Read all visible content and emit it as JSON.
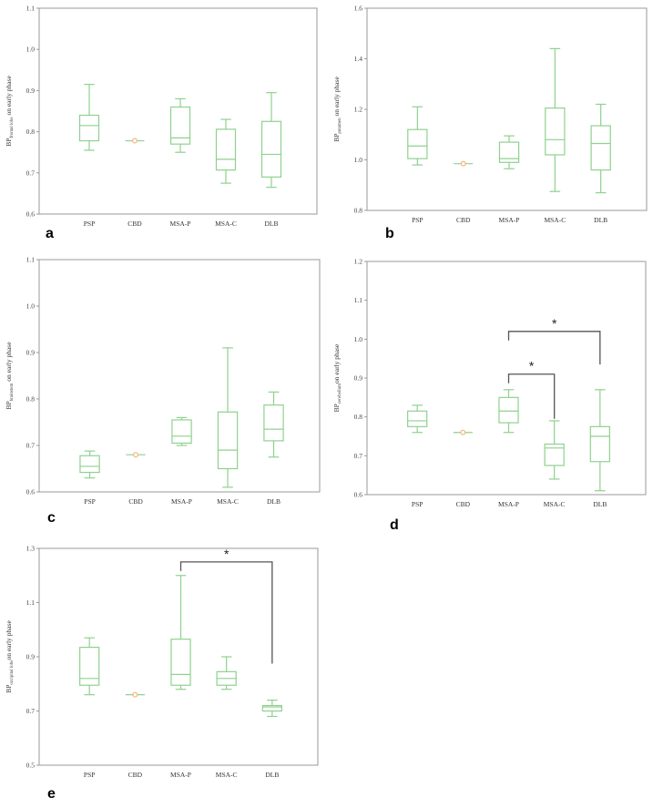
{
  "colors": {
    "box": "#8fd18f",
    "median_point": "#f2b77a",
    "frame": "#9a9a9a",
    "bracket": "#555555"
  },
  "chart_data": [
    {
      "type": "boxplot",
      "panel_label": "a",
      "ylabel_prefix": "BP",
      "ylabel_sub": "frontal lobe",
      "ylabel_suffix": " on early phase",
      "ylim": [
        0.6,
        1.1
      ],
      "yticks": [
        "0.6",
        "0.7",
        "0.8",
        "0.9",
        "1.0",
        "1.1"
      ],
      "categories": [
        "PSP",
        "CBD",
        "MSA-P",
        "MSA-C",
        "DLB"
      ],
      "boxes": [
        {
          "min": 0.755,
          "q1": 0.778,
          "median": 0.815,
          "q3": 0.84,
          "max": 0.915
        },
        {
          "single": 0.778
        },
        {
          "min": 0.75,
          "q1": 0.77,
          "median": 0.785,
          "q3": 0.86,
          "max": 0.88
        },
        {
          "min": 0.675,
          "q1": 0.707,
          "median": 0.733,
          "q3": 0.806,
          "max": 0.83
        },
        {
          "min": 0.665,
          "q1": 0.69,
          "median": 0.745,
          "q3": 0.825,
          "max": 0.895
        }
      ],
      "annotations": []
    },
    {
      "type": "boxplot",
      "panel_label": "b",
      "ylabel_prefix": "BP",
      "ylabel_sub": "putamen",
      "ylabel_suffix": " on early phase",
      "ylim": [
        0.8,
        1.6
      ],
      "yticks": [
        "0.8",
        "1.0",
        "1.2",
        "1.4",
        "1.6"
      ],
      "categories": [
        "PSP",
        "CBD",
        "MSA-P",
        "MSA-C",
        "DLB"
      ],
      "boxes": [
        {
          "min": 0.98,
          "q1": 1.005,
          "median": 1.055,
          "q3": 1.12,
          "max": 1.21
        },
        {
          "single": 0.985
        },
        {
          "min": 0.965,
          "q1": 0.99,
          "median": 1.005,
          "q3": 1.07,
          "max": 1.095
        },
        {
          "min": 0.875,
          "q1": 1.02,
          "median": 1.08,
          "q3": 1.205,
          "max": 1.44
        },
        {
          "min": 0.87,
          "q1": 0.96,
          "median": 1.065,
          "q3": 1.135,
          "max": 1.22
        }
      ],
      "annotations": []
    },
    {
      "type": "boxplot",
      "panel_label": "c",
      "ylabel_prefix": "BP",
      "ylabel_sub": "brainstem",
      "ylabel_suffix": " on early phase",
      "ylim": [
        0.6,
        1.1
      ],
      "yticks": [
        "0.6",
        "0.7",
        "0.8",
        "0.9",
        "1.0",
        "1.1"
      ],
      "categories": [
        "PSP",
        "CBD",
        "MSA-P",
        "MSA-C",
        "DLB"
      ],
      "boxes": [
        {
          "min": 0.63,
          "q1": 0.642,
          "median": 0.655,
          "q3": 0.678,
          "max": 0.688
        },
        {
          "single": 0.68
        },
        {
          "min": 0.7,
          "q1": 0.705,
          "median": 0.72,
          "q3": 0.755,
          "max": 0.76
        },
        {
          "min": 0.61,
          "q1": 0.65,
          "median": 0.69,
          "q3": 0.772,
          "max": 0.91
        },
        {
          "min": 0.675,
          "q1": 0.71,
          "median": 0.735,
          "q3": 0.787,
          "max": 0.815
        }
      ],
      "annotations": []
    },
    {
      "type": "boxplot",
      "panel_label": "d",
      "ylabel_prefix": "BP",
      "ylabel_sub": "cerebellum",
      "ylabel_suffix": "on early phase",
      "ylim": [
        0.6,
        1.2
      ],
      "yticks": [
        "0.6",
        "0.7",
        "0.8",
        "0.9",
        "1.0",
        "1.1",
        "1.2"
      ],
      "categories": [
        "PSP",
        "CBD",
        "MSA-P",
        "MSA-C",
        "DLB"
      ],
      "boxes": [
        {
          "min": 0.76,
          "q1": 0.775,
          "median": 0.79,
          "q3": 0.815,
          "max": 0.83
        },
        {
          "single": 0.76
        },
        {
          "min": 0.76,
          "q1": 0.785,
          "median": 0.815,
          "q3": 0.85,
          "max": 0.87
        },
        {
          "min": 0.64,
          "q1": 0.675,
          "median": 0.72,
          "q3": 0.73,
          "max": 0.79
        },
        {
          "min": 0.61,
          "q1": 0.685,
          "median": 0.75,
          "q3": 0.775,
          "max": 0.87
        }
      ],
      "annotations": [
        {
          "from": 2,
          "to": 4,
          "level": 1.02,
          "drop_to": 0.935,
          "label": "*"
        },
        {
          "from": 2,
          "to": 3,
          "level": 0.91,
          "drop_to": 0.795,
          "label": "*"
        }
      ]
    },
    {
      "type": "boxplot",
      "panel_label": "e",
      "ylabel_prefix": "BP",
      "ylabel_sub": "occipital lobe",
      "ylabel_suffix": "on early phase",
      "ylim": [
        0.5,
        1.3
      ],
      "yticks": [
        "0.5",
        "0.7",
        "0.9",
        "1.1",
        "1.3"
      ],
      "categories": [
        "PSP",
        "CBD",
        "MSA-P",
        "MSA-C",
        "DLB"
      ],
      "boxes": [
        {
          "min": 0.76,
          "q1": 0.795,
          "median": 0.82,
          "q3": 0.935,
          "max": 0.97
        },
        {
          "single": 0.76
        },
        {
          "min": 0.78,
          "q1": 0.795,
          "median": 0.835,
          "q3": 0.965,
          "max": 1.2
        },
        {
          "min": 0.78,
          "q1": 0.795,
          "median": 0.82,
          "q3": 0.845,
          "max": 0.9
        },
        {
          "min": 0.68,
          "q1": 0.7,
          "median": 0.715,
          "q3": 0.72,
          "max": 0.74
        }
      ],
      "annotations": [
        {
          "from": 2,
          "to": 4,
          "level": 1.25,
          "drop_to": 0.875,
          "label": "*"
        }
      ]
    }
  ]
}
